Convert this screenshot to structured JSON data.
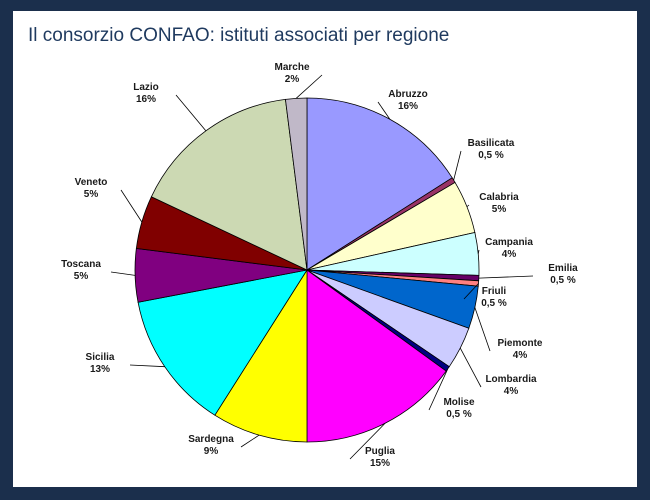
{
  "title": "Il consorzio CONFAO: istituti associati per regione",
  "chart_data": {
    "type": "pie",
    "title": "Il consorzio CONFAO: istituti associati per regione",
    "start_angle_deg": 0,
    "direction": "clockwise",
    "slices": [
      {
        "name": "Abruzzo",
        "pct_label": "16%",
        "value": 16,
        "color": "#9999ff"
      },
      {
        "name": "Basilicata",
        "pct_label": "0,5 %",
        "value": 0.5,
        "color": "#993366"
      },
      {
        "name": "Calabria",
        "pct_label": "5%",
        "value": 5,
        "color": "#ffffcc"
      },
      {
        "name": "Campania",
        "pct_label": "4%",
        "value": 4,
        "color": "#ccffff"
      },
      {
        "name": "Emilia",
        "pct_label": "0,5 %",
        "value": 0.5,
        "color": "#660066"
      },
      {
        "name": "Friuli",
        "pct_label": "0,5  %",
        "value": 0.5,
        "color": "#ff8080"
      },
      {
        "name": "Piemonte",
        "pct_label": "4%",
        "value": 4,
        "color": "#0066cc"
      },
      {
        "name": "Lombardia",
        "pct_label": "4%",
        "value": 4,
        "color": "#ccccff"
      },
      {
        "name": "Molise",
        "pct_label": "0,5 %",
        "value": 0.5,
        "color": "#000080"
      },
      {
        "name": "Puglia",
        "pct_label": "15%",
        "value": 15,
        "color": "#ff00ff"
      },
      {
        "name": "Sardegna",
        "pct_label": "9%",
        "value": 9,
        "color": "#ffff00"
      },
      {
        "name": "Sicilia",
        "pct_label": "13%",
        "value": 13,
        "color": "#00ffff"
      },
      {
        "name": "Toscana",
        "pct_label": "5%",
        "value": 5,
        "color": "#800080"
      },
      {
        "name": "Veneto",
        "pct_label": "5%",
        "value": 5,
        "color": "#800000"
      },
      {
        "name": "Lazio",
        "pct_label": "16%",
        "value": 16,
        "color": "#ccd9b3"
      },
      {
        "name": "Marche",
        "pct_label": "2%",
        "value": 2,
        "color": "#c0b8c8"
      }
    ]
  }
}
